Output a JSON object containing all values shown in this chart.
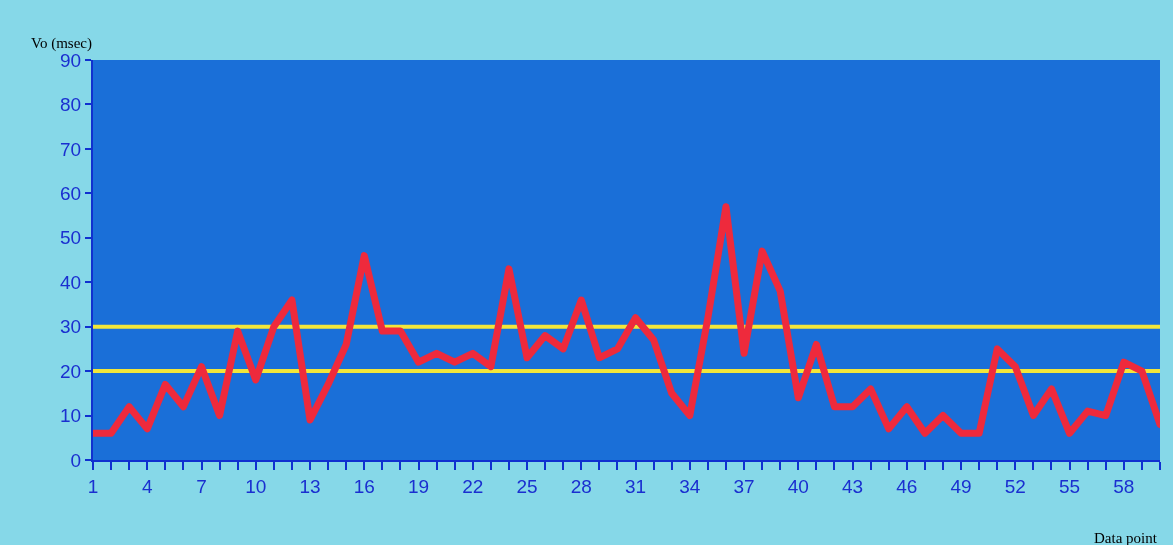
{
  "chart_data": {
    "type": "line",
    "xlabel": "Data point",
    "ylabel": "Vo (msec)",
    "x": [
      1,
      2,
      3,
      4,
      5,
      6,
      7,
      8,
      9,
      10,
      11,
      12,
      13,
      14,
      15,
      16,
      17,
      18,
      19,
      20,
      21,
      22,
      23,
      24,
      25,
      26,
      27,
      28,
      29,
      30,
      31,
      32,
      33,
      34,
      35,
      36,
      37,
      38,
      39,
      40,
      41,
      42,
      43,
      44,
      45,
      46,
      47,
      48,
      49,
      50,
      51,
      52,
      53,
      54,
      55,
      56,
      57,
      58,
      59,
      60
    ],
    "series": [
      {
        "color": "#ee2a3c",
        "values": [
          6,
          6,
          12,
          7,
          17,
          12,
          21,
          10,
          29,
          18,
          30,
          36,
          9,
          17,
          26,
          46,
          29,
          29,
          22,
          24,
          22,
          24,
          21,
          43,
          23,
          28,
          25,
          36,
          23,
          25,
          32,
          27,
          15,
          10,
          32,
          57,
          24,
          47,
          38,
          14,
          26,
          12,
          12,
          16,
          7,
          12,
          6,
          10,
          6,
          6,
          25,
          21,
          10,
          16,
          6,
          11,
          10,
          22,
          20,
          8
        ]
      }
    ],
    "xlim": [
      1,
      60
    ],
    "xticks": [
      1,
      {
        "value": 2,
        "label": null
      },
      {
        "value": 3,
        "label": null
      },
      4,
      {
        "value": 5,
        "label": null
      },
      {
        "value": 6,
        "label": null
      },
      7,
      {
        "value": 8,
        "label": null
      },
      {
        "value": 9,
        "label": null
      },
      10,
      {
        "value": 11,
        "label": null
      },
      {
        "value": 12,
        "label": null
      },
      13,
      {
        "value": 14,
        "label": null
      },
      {
        "value": 15,
        "label": null
      },
      16,
      {
        "value": 17,
        "label": null
      },
      {
        "value": 18,
        "label": null
      },
      19,
      {
        "value": 20,
        "label": null
      },
      {
        "value": 21,
        "label": null
      },
      22,
      {
        "value": 23,
        "label": null
      },
      {
        "value": 24,
        "label": null
      },
      25,
      {
        "value": 26,
        "label": null
      },
      {
        "value": 27,
        "label": null
      },
      28,
      {
        "value": 29,
        "label": null
      },
      {
        "value": 30,
        "label": null
      },
      31,
      {
        "value": 32,
        "label": null
      },
      {
        "value": 33,
        "label": null
      },
      34,
      {
        "value": 35,
        "label": null
      },
      {
        "value": 36,
        "label": null
      },
      37,
      {
        "value": 38,
        "label": null
      },
      {
        "value": 39,
        "label": null
      },
      40,
      {
        "value": 41,
        "label": null
      },
      {
        "value": 42,
        "label": null
      },
      43,
      {
        "value": 44,
        "label": null
      },
      {
        "value": 45,
        "label": null
      },
      46,
      {
        "value": 47,
        "label": null
      },
      {
        "value": 48,
        "label": null
      },
      49,
      {
        "value": 50,
        "label": null
      },
      {
        "value": 51,
        "label": null
      },
      52,
      {
        "value": 53,
        "label": null
      },
      {
        "value": 54,
        "label": null
      },
      55,
      {
        "value": 56,
        "label": null
      },
      {
        "value": 57,
        "label": null
      },
      58,
      {
        "value": 59,
        "label": null
      },
      {
        "value": 60,
        "label": null
      }
    ],
    "ylim": [
      0,
      90
    ],
    "yticks": [
      0,
      10,
      20,
      30,
      40,
      50,
      60,
      70,
      80,
      90
    ],
    "ref_lines": [
      {
        "axis": "y",
        "value": 30,
        "color": "#f2e63a"
      },
      {
        "axis": "y",
        "value": 20,
        "color": "#f2e63a"
      }
    ],
    "grid": false,
    "marker": "none",
    "line_style": "solid"
  }
}
